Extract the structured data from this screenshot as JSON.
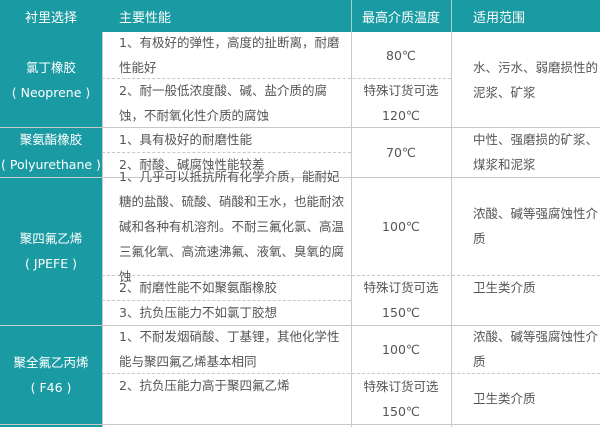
{
  "header": [
    "衬里选择",
    "主要性能",
    "最高介质温度",
    "适用范围"
  ],
  "rows": [
    {
      "lining": [
        "氯丁橡胶",
        "( Neoprene )"
      ],
      "props": [
        "1、有极好的弹性，高度的扯断离，耐磨性能好",
        "2、耐一般低浓度酸、碱、盐介质的腐蚀，不耐氧化性介质的腐蚀"
      ],
      "temp": [
        "80℃",
        "特殊订货可选",
        "120℃"
      ],
      "range": [
        "水、污水、弱磨损性的泥浆、矿浆"
      ]
    },
    {
      "lining": [
        "聚氨酯橡胶",
        "( Polyurethane )"
      ],
      "props": [
        "1、具有极好的耐磨性能",
        "2、耐酸、碱腐蚀性能较差"
      ],
      "temp": [
        "70℃"
      ],
      "range": [
        "中性、强磨损的矿浆、煤浆和泥浆"
      ]
    },
    {
      "lining": [
        "聚四氟乙烯",
        "( JPEFE )"
      ],
      "props": [
        "1、几乎可以抵抗所有化学介质，能耐妃糖的盐酸、硫酸、硝酸和王水，也能耐浓碱和各种有机溶剂。不耐三氟化氯、高温三氟化氧、高流速沸氟、液氧、臭氧的腐蚀",
        "2、耐磨性能不如聚氨酯橡胶",
        "3、抗负压能力不如氯丁胶想"
      ],
      "temp": [
        "100℃",
        "特殊订货可选",
        "150℃"
      ],
      "range": [
        "浓酸、碱等强腐蚀性介质",
        "卫生类介质"
      ]
    },
    {
      "lining": [
        "聚全氟乙丙烯",
        "( F46 )"
      ],
      "props": [
        "1、不耐发烟硝酸、丁基锂，其他化学性能与聚四氟乙烯基本相同",
        "2、抗负压能力高于聚四氟乙烯"
      ],
      "temp": [
        "100℃",
        "特殊订货可选",
        "150℃"
      ],
      "range": [
        "浓酸、碱等强腐蚀性介质",
        "卫生类介质"
      ]
    }
  ],
  "colors": {
    "accent": "#1a9ba3",
    "border": "#c8c8c8",
    "text": "#555555"
  }
}
